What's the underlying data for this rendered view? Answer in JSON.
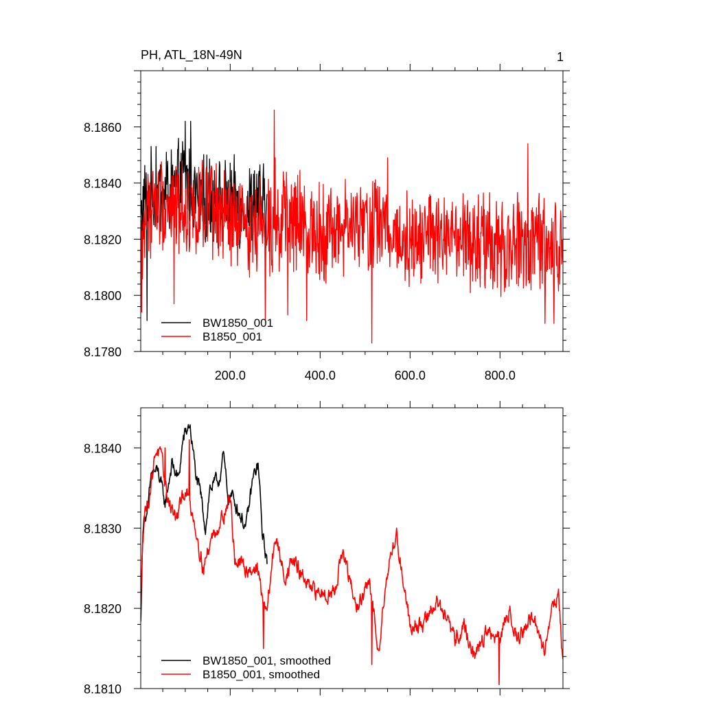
{
  "chart_data": [
    {
      "type": "line",
      "title": "PH, ATL_18N-49N",
      "panel_label": "1",
      "xlim": [
        1,
        940
      ],
      "ylim": [
        8.178,
        8.188
      ],
      "x_ticks": [
        200,
        400,
        600,
        800
      ],
      "x_tick_labels": [
        "200.0",
        "400.0",
        "600.0",
        "800.0"
      ],
      "y_ticks": [
        8.178,
        8.18,
        8.182,
        8.184,
        8.186
      ],
      "y_tick_labels": [
        "8.1780",
        "8.1800",
        "8.1820",
        "8.1840",
        "8.1860"
      ],
      "legend": "bottom-left",
      "series": [
        {
          "name": "BW1850_001",
          "color": "#000000",
          "x_range": [
            1,
            282
          ],
          "anchors": [
            [
              1,
              8.1826
            ],
            [
              8,
              8.1833
            ],
            [
              20,
              8.1836
            ],
            [
              40,
              8.1836
            ],
            [
              60,
              8.1836
            ],
            [
              80,
              8.1838
            ],
            [
              100,
              8.1842
            ],
            [
              120,
              8.1836
            ],
            [
              140,
              8.1833
            ],
            [
              160,
              8.1836
            ],
            [
              180,
              8.1832
            ],
            [
              200,
              8.1833
            ],
            [
              220,
              8.1832
            ],
            [
              240,
              8.1832
            ],
            [
              260,
              8.1834
            ],
            [
              282,
              8.183
            ]
          ],
          "noise_amplitude": 0.0016,
          "peaks": [
            [
              100,
              8.1862
            ],
            [
              112,
              8.1862
            ],
            [
              35,
              8.1853
            ],
            [
              58,
              8.1851
            ],
            [
              15,
              8.1791
            ],
            [
              198,
              8.1818
            ]
          ]
        },
        {
          "name": "B1850_001",
          "color": "#ff0000",
          "x_range": [
            1,
            940
          ],
          "anchors": [
            [
              1,
              8.181
            ],
            [
              5,
              8.1822
            ],
            [
              15,
              8.183
            ],
            [
              40,
              8.1833
            ],
            [
              80,
              8.1832
            ],
            [
              100,
              8.1831
            ],
            [
              140,
              8.183
            ],
            [
              180,
              8.1828
            ],
            [
              200,
              8.1826
            ],
            [
              240,
              8.1825
            ],
            [
              270,
              8.1826
            ],
            [
              290,
              8.1826
            ],
            [
              330,
              8.1826
            ],
            [
              380,
              8.1824
            ],
            [
              420,
              8.1823
            ],
            [
              460,
              8.1824
            ],
            [
              500,
              8.1824
            ],
            [
              520,
              8.1827
            ],
            [
              560,
              8.1822
            ],
            [
              600,
              8.182
            ],
            [
              640,
              8.1822
            ],
            [
              680,
              8.1819
            ],
            [
              720,
              8.1818
            ],
            [
              760,
              8.1818
            ],
            [
              800,
              8.1816
            ],
            [
              840,
              8.1818
            ],
            [
              880,
              8.1818
            ],
            [
              910,
              8.1818
            ],
            [
              940,
              8.1814
            ]
          ],
          "noise_amplitude": 0.0018,
          "peaks": [
            [
              298,
              8.1866
            ],
            [
              515,
              8.1783
            ],
            [
              3,
              8.1794
            ],
            [
              75,
              8.1797
            ],
            [
              278,
              8.1791
            ],
            [
              300,
              8.1849
            ],
            [
              862,
              8.1854
            ],
            [
              550,
              8.1849
            ],
            [
              328,
              8.1793
            ],
            [
              370,
              8.1791
            ],
            [
              900,
              8.179
            ],
            [
              920,
              8.179
            ]
          ]
        }
      ]
    },
    {
      "type": "line",
      "xlim": [
        1,
        940
      ],
      "ylim": [
        8.181,
        8.1845
      ],
      "x_ticks": [
        200,
        400,
        600,
        800
      ],
      "x_tick_labels": [],
      "y_ticks": [
        8.181,
        8.182,
        8.183,
        8.184
      ],
      "y_tick_labels": [
        "8.1810",
        "8.1820",
        "8.1830",
        "8.1840"
      ],
      "legend": "bottom-left",
      "series": [
        {
          "name": "BW1850_001, smoothed",
          "color": "#000000",
          "x_range": [
            1,
            282
          ],
          "anchors": [
            [
              1,
              8.1818
            ],
            [
              4,
              8.1826
            ],
            [
              8,
              8.1832
            ],
            [
              15,
              8.1831
            ],
            [
              25,
              8.1837
            ],
            [
              40,
              8.1837
            ],
            [
              55,
              8.1833
            ],
            [
              70,
              8.1838
            ],
            [
              85,
              8.1836
            ],
            [
              95,
              8.1841
            ],
            [
              110,
              8.1843
            ],
            [
              125,
              8.1836
            ],
            [
              135,
              8.1834
            ],
            [
              145,
              8.183
            ],
            [
              155,
              8.1835
            ],
            [
              175,
              8.1836
            ],
            [
              185,
              8.1839
            ],
            [
              195,
              8.1834
            ],
            [
              205,
              8.1834
            ],
            [
              220,
              8.1832
            ],
            [
              235,
              8.183
            ],
            [
              250,
              8.1836
            ],
            [
              262,
              8.1838
            ],
            [
              272,
              8.1829
            ],
            [
              282,
              8.1826
            ]
          ],
          "noise_amplitude": 0.00018
        },
        {
          "name": "B1850_001, smoothed",
          "color": "#ff0000",
          "x_range": [
            1,
            940
          ],
          "anchors": [
            [
              1,
              8.1819
            ],
            [
              5,
              8.1829
            ],
            [
              10,
              8.1832
            ],
            [
              20,
              8.1834
            ],
            [
              35,
              8.184
            ],
            [
              45,
              8.1839
            ],
            [
              60,
              8.1834
            ],
            [
              80,
              8.1831
            ],
            [
              100,
              8.1835
            ],
            [
              120,
              8.1831
            ],
            [
              140,
              8.1825
            ],
            [
              160,
              8.1829
            ],
            [
              180,
              8.1831
            ],
            [
              200,
              8.1834
            ],
            [
              210,
              8.1826
            ],
            [
              230,
              8.1825
            ],
            [
              260,
              8.1825
            ],
            [
              280,
              8.1819
            ],
            [
              300,
              8.1829
            ],
            [
              320,
              8.1824
            ],
            [
              340,
              8.1826
            ],
            [
              380,
              8.1822
            ],
            [
              430,
              8.1822
            ],
            [
              450,
              8.1827
            ],
            [
              480,
              8.182
            ],
            [
              510,
              8.1823
            ],
            [
              530,
              8.1815
            ],
            [
              550,
              8.1825
            ],
            [
              570,
              8.1829
            ],
            [
              600,
              8.1818
            ],
            [
              630,
              8.1818
            ],
            [
              660,
              8.1821
            ],
            [
              700,
              8.1816
            ],
            [
              720,
              8.1818
            ],
            [
              740,
              8.1814
            ],
            [
              770,
              8.1817
            ],
            [
              800,
              8.1816
            ],
            [
              820,
              8.182
            ],
            [
              840,
              8.1816
            ],
            [
              870,
              8.1819
            ],
            [
              890,
              8.1816
            ],
            [
              900,
              8.1815
            ],
            [
              915,
              8.182
            ],
            [
              930,
              8.1822
            ],
            [
              940,
              8.1813
            ]
          ],
          "noise_amplitude": 0.0002,
          "peaks": [
            [
              274,
              8.1815
            ],
            [
              798,
              8.18105
            ],
            [
              515,
              8.1813
            ],
            [
              570,
              8.183
            ],
            [
              55,
              8.184
            ],
            [
              109,
              8.1841
            ]
          ]
        }
      ]
    }
  ]
}
